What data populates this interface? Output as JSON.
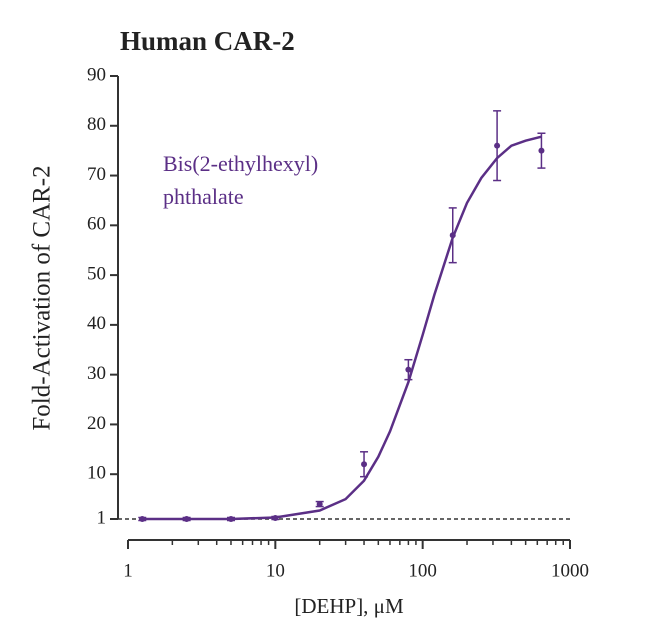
{
  "chart_data": {
    "type": "scatter",
    "title": "Human CAR-2",
    "x_label": "[DEHP], μM",
    "y_label": "Fold-Activation of CAR-2",
    "annotation": [
      "Bis(2-ethylhexyl)",
      "phthalate"
    ],
    "xscale": "log",
    "xlim": [
      1,
      1000
    ],
    "xticks": [
      1,
      10,
      100,
      1000
    ],
    "xminorticks": [
      2,
      3,
      4,
      5,
      6,
      7,
      8,
      9,
      20,
      30,
      40,
      50,
      60,
      70,
      80,
      90,
      200,
      300,
      400,
      500,
      600,
      700,
      800,
      900
    ],
    "ylim": [
      1,
      90
    ],
    "yticks": [
      1,
      10,
      20,
      30,
      40,
      50,
      60,
      70,
      80,
      90
    ],
    "baseline": 1,
    "series": [
      {
        "name": "Bis(2-ethylhexyl) phthalate",
        "color": "#5b2f86",
        "x": [
          1.25,
          2.5,
          5,
          10,
          20,
          40,
          80,
          160,
          320,
          640
        ],
        "values": [
          1,
          1,
          1,
          1.2,
          4,
          12,
          31,
          58,
          76,
          75
        ],
        "errors": [
          0.3,
          0.3,
          0.3,
          0.3,
          0.5,
          2.5,
          2,
          5.5,
          7,
          3.5
        ]
      }
    ],
    "fit": {
      "color": "#5b2f86",
      "x": [
        1.25,
        5,
        10,
        20,
        30,
        40,
        50,
        60,
        80,
        100,
        120,
        160,
        200,
        250,
        320,
        400,
        500,
        640
      ],
      "values": [
        1,
        1,
        1.3,
        2.7,
        5,
        8.7,
        13.5,
        18.6,
        28.5,
        38,
        46,
        57.5,
        64.5,
        69.5,
        73.5,
        76,
        77,
        77.8
      ]
    }
  }
}
